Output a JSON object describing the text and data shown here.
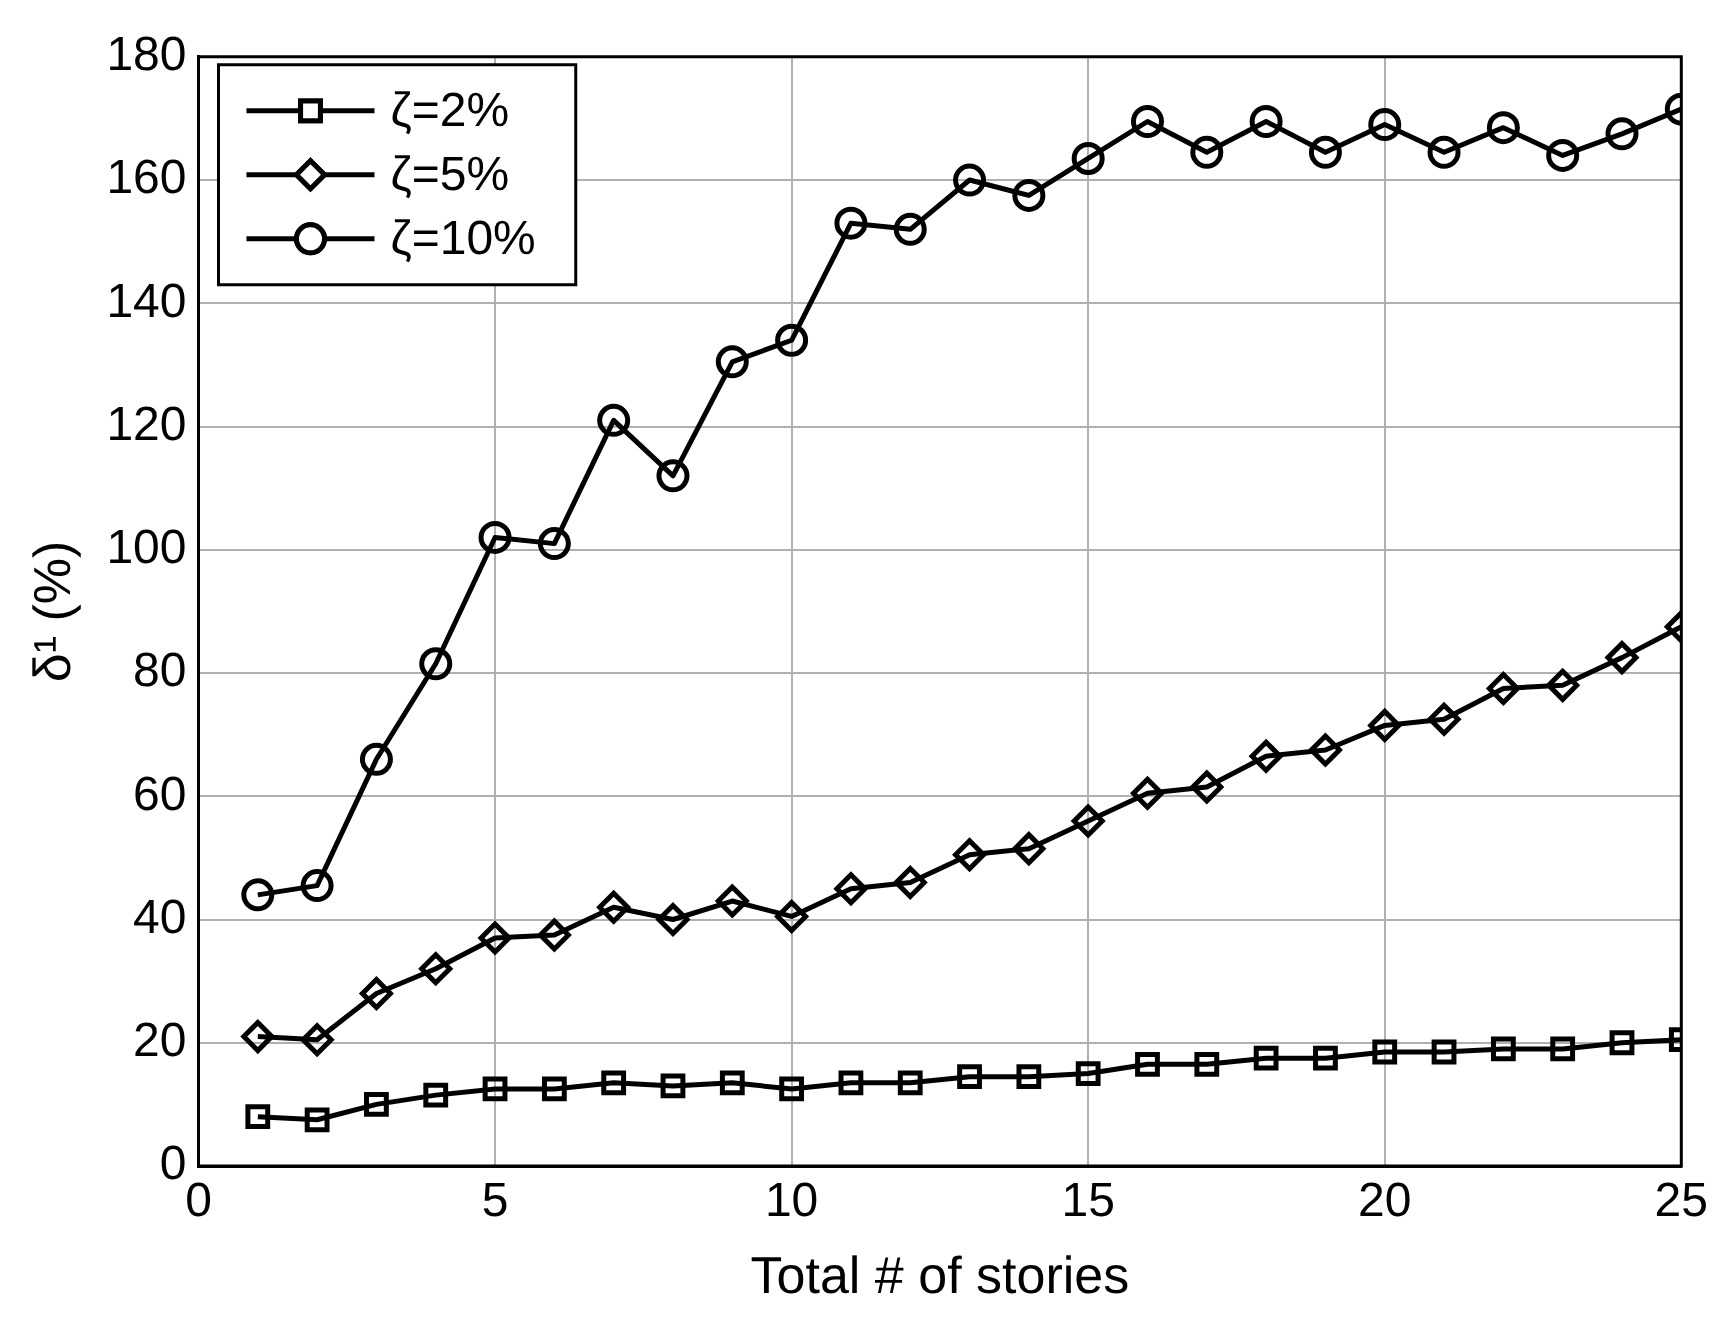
{
  "chart_data": {
    "type": "line",
    "xlabel": "Total # of stories",
    "ylabel": "δ¹ (%)",
    "x": [
      1,
      2,
      3,
      4,
      5,
      6,
      7,
      8,
      9,
      10,
      11,
      12,
      13,
      14,
      15,
      16,
      17,
      18,
      19,
      20,
      21,
      22,
      23,
      24,
      25
    ],
    "xlim": [
      0,
      25
    ],
    "xticks": [
      0,
      5,
      10,
      15,
      20,
      25
    ],
    "ylim": [
      0,
      180
    ],
    "yticks": [
      0,
      20,
      40,
      60,
      80,
      100,
      120,
      140,
      160,
      180
    ],
    "grid": true,
    "legend": "top left",
    "line_style": "solid",
    "series": [
      {
        "name": "ζ=2%",
        "color": "#000000",
        "marker": "square",
        "values": [
          8,
          7.5,
          10,
          11.5,
          12.5,
          12.5,
          13.5,
          13,
          13.5,
          12.5,
          13.5,
          13.5,
          14.5,
          14.5,
          15,
          16.5,
          16.5,
          17.5,
          17.5,
          18.5,
          18.5,
          19,
          19,
          20,
          20.5
        ]
      },
      {
        "name": "ζ=5%",
        "color": "#000000",
        "marker": "diamond",
        "values": [
          21,
          20.5,
          28,
          32,
          37,
          37.5,
          42,
          40,
          43,
          40.5,
          45,
          46,
          50.5,
          51.5,
          56,
          60.5,
          61.5,
          66.5,
          67.5,
          71.5,
          72.5,
          77.5,
          78,
          82.5,
          87.5
        ]
      },
      {
        "name": "ζ=10%",
        "color": "#000000",
        "marker": "circle",
        "values": [
          44,
          45.5,
          66,
          81.5,
          102,
          101,
          121,
          112,
          130.5,
          134,
          153,
          152,
          160,
          157.5,
          163.5,
          169.5,
          164.5,
          169.5,
          164.5,
          169,
          164.5,
          168.5,
          164,
          167.5,
          171.5
        ]
      }
    ]
  }
}
